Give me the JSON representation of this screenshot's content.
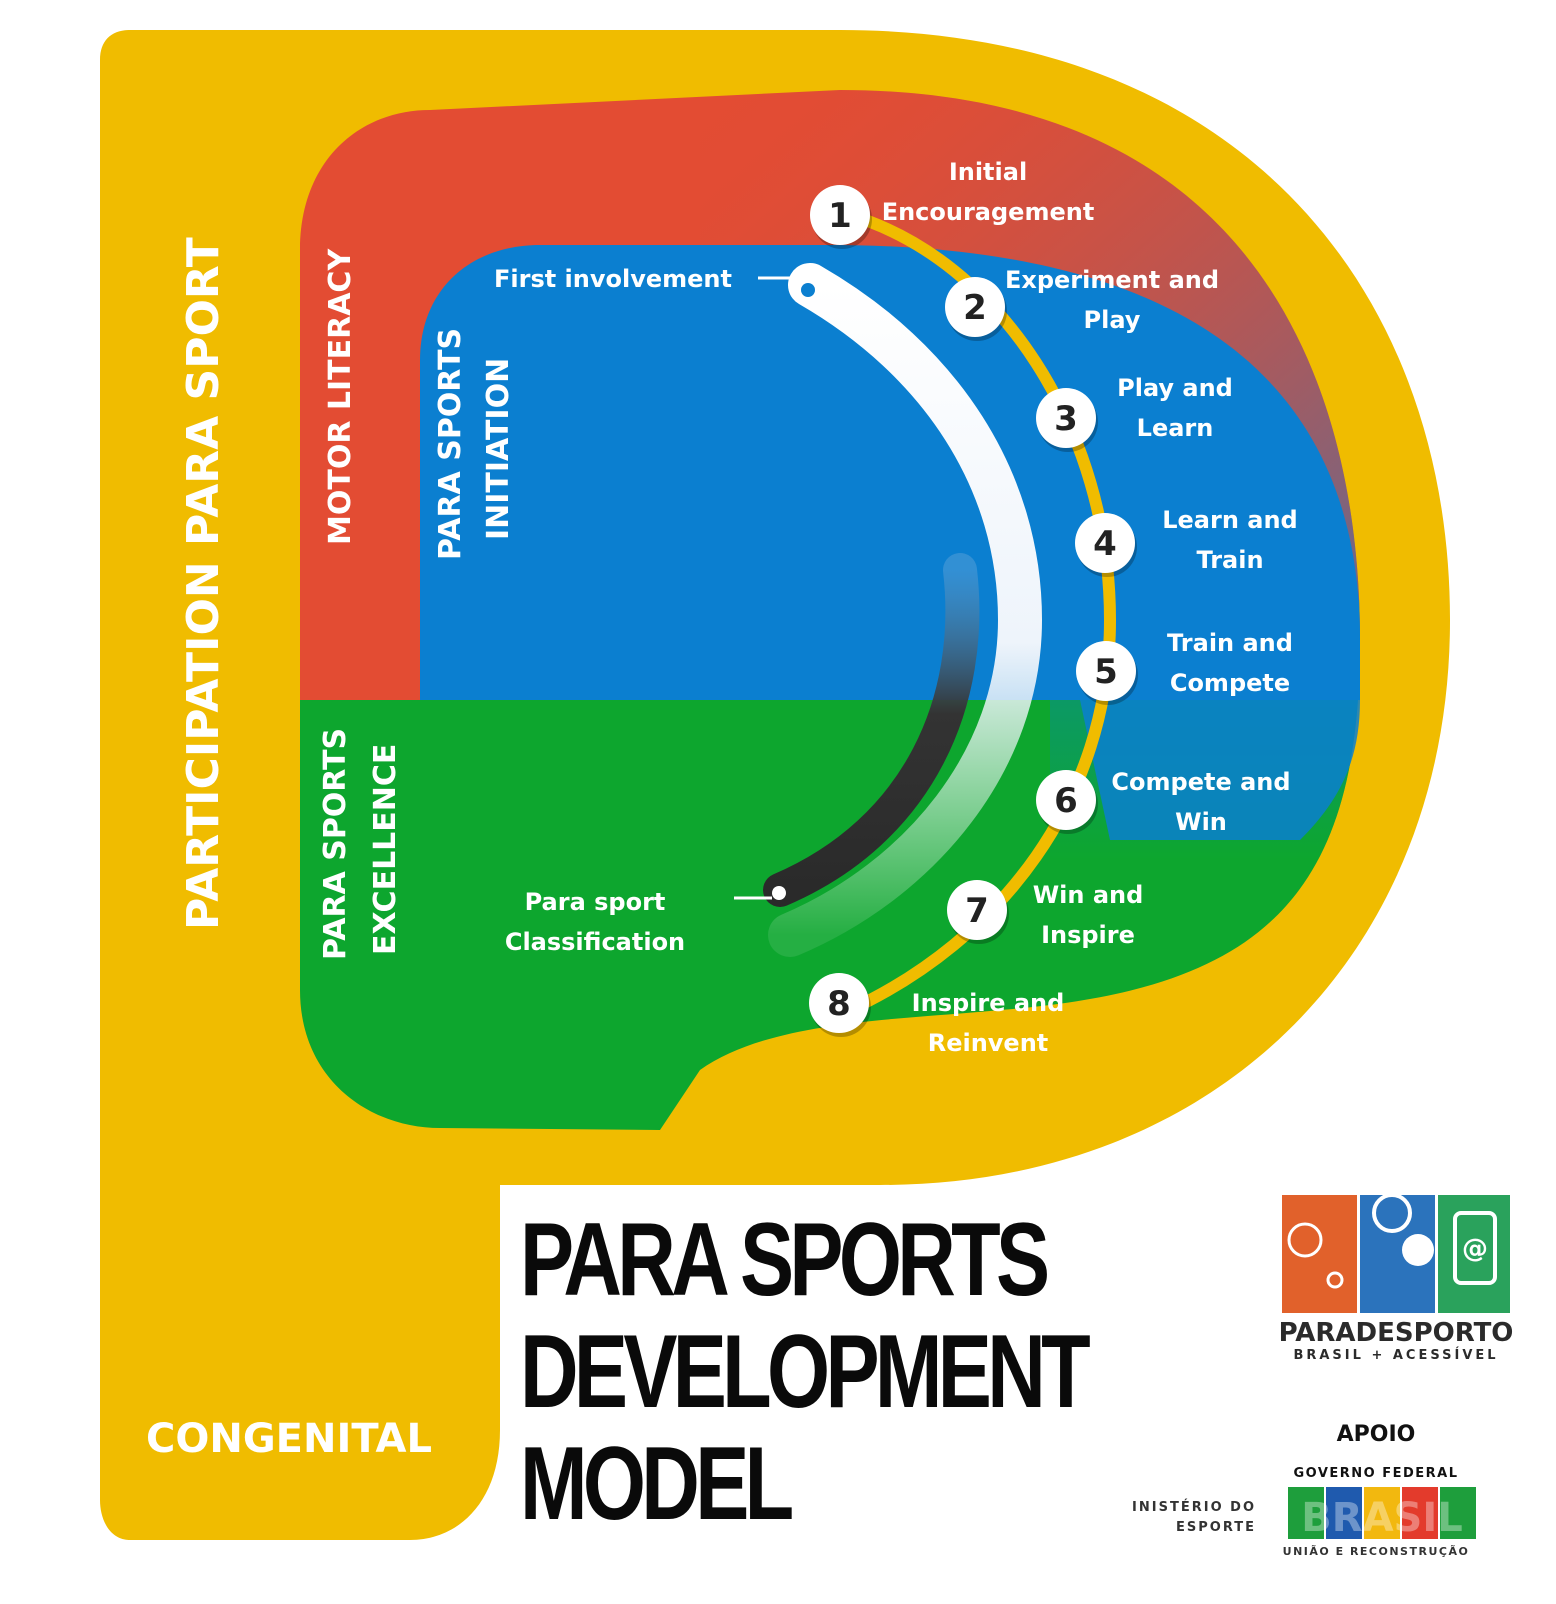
{
  "colors": {
    "yellow": "#F0BC00",
    "red": "#E34C33",
    "blue": "#0B7FD0",
    "green": "#0DA62E",
    "white": "#FFFFFF",
    "dark": "#222222"
  },
  "zones": {
    "outer": "PARTICIPATION PARA SPORT",
    "motor": "MOTOR LITERACY",
    "initiation_1": "PARA SPORTS",
    "initiation_2": "INITIATION",
    "excellence_1": "PARA SPORTS",
    "excellence_2": "EXCELLENCE",
    "congenital": "CONGENITAL"
  },
  "path": {
    "start": "First involvement",
    "end_1": "Para sport",
    "end_2": "Classification"
  },
  "stages": [
    {
      "num": "1",
      "l1": "Initial",
      "l2": "Encouragement"
    },
    {
      "num": "2",
      "l1": "Experiment and",
      "l2": "Play"
    },
    {
      "num": "3",
      "l1": "Play and",
      "l2": "Learn"
    },
    {
      "num": "4",
      "l1": "Learn and",
      "l2": "Train"
    },
    {
      "num": "5",
      "l1": "Train and",
      "l2": "Compete"
    },
    {
      "num": "6",
      "l1": "Compete and",
      "l2": "Win"
    },
    {
      "num": "7",
      "l1": "Win and",
      "l2": "Inspire"
    },
    {
      "num": "8",
      "l1": "Inspire and",
      "l2": "Reinvent"
    }
  ],
  "title": [
    "PARA SPORTS",
    "DEVELOPMENT",
    "MODEL"
  ],
  "logo": {
    "name": "PARADESPORTO",
    "tagline": "BRASIL + ACESSÍVEL",
    "support": "APOIO",
    "ministry_1": "MINISTÉRIO DO",
    "ministry_2": "ESPORTE",
    "gov": "GOVERNO FEDERAL",
    "gov_sub": "UNIÃO E RECONSTRUÇÃO",
    "brasil": "BRASIL"
  }
}
